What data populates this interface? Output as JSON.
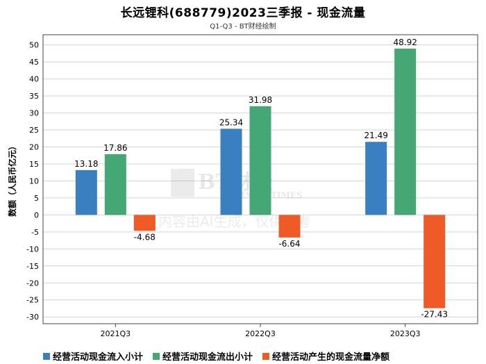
{
  "title": "长远锂科(688779)2023三季报 - 现金流量",
  "subtitle": "Q1-Q3 - BT财经绘制",
  "watermark": {
    "brand": "BT财经",
    "brand_en": "BUSINESSTIMES",
    "note": "内容由AI生成，仅供参考"
  },
  "chart_data": {
    "type": "bar",
    "ylabel": "数额（人民币亿元）",
    "xlabel": "",
    "ylim": [
      -32,
      53
    ],
    "yticks": [
      50,
      45,
      40,
      35,
      30,
      25,
      20,
      15,
      10,
      5,
      0,
      -5,
      -10,
      -15,
      -20,
      -25,
      -30
    ],
    "grid": true,
    "legend_position": "bottom",
    "categories": [
      "2021Q3",
      "2022Q3",
      "2023Q3"
    ],
    "series": [
      {
        "name": "经营活动现金流入小计",
        "color": "#3a7fbf",
        "values": [
          13.18,
          25.34,
          21.49
        ],
        "labels": [
          "13.18",
          "25.34",
          "21.49"
        ]
      },
      {
        "name": "经营活动现金流出小计",
        "color": "#45a874",
        "values": [
          17.86,
          31.98,
          48.92
        ],
        "labels": [
          "17.86",
          "31.98",
          "48.92"
        ]
      },
      {
        "name": "经营活动产生的现金流量净额",
        "color": "#f05a26",
        "values": [
          -4.68,
          -6.64,
          -27.43
        ],
        "labels": [
          "-4.68",
          "-6.64",
          "-27.43"
        ]
      }
    ]
  }
}
